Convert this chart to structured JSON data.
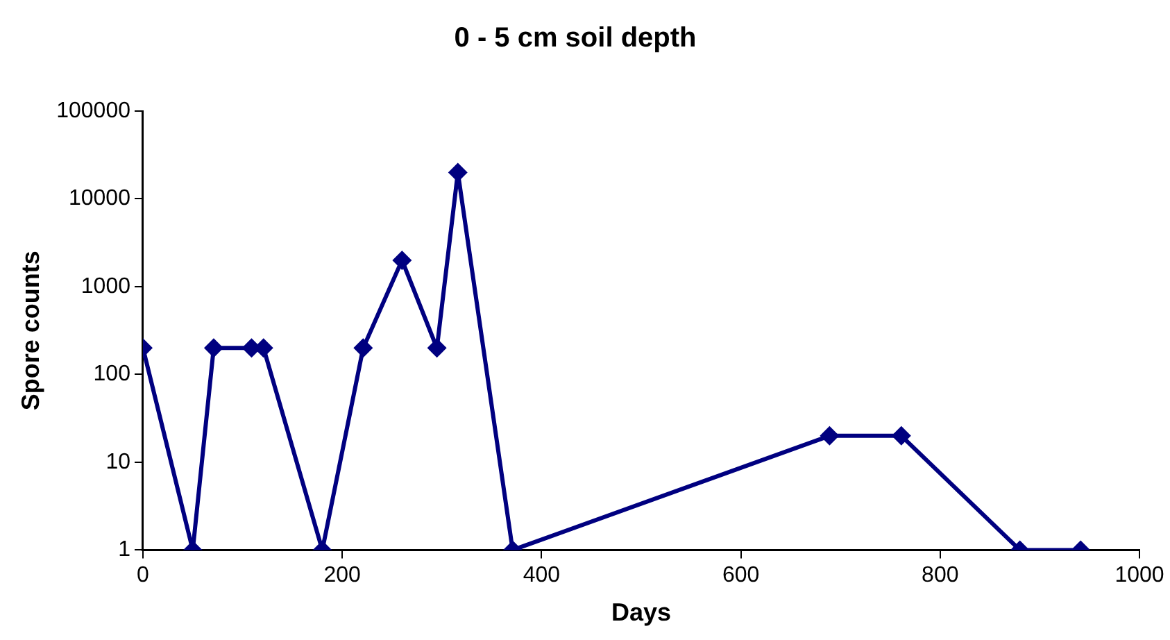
{
  "chart_data": {
    "type": "line",
    "title": "0 - 5 cm soil depth",
    "xlabel": "Days",
    "ylabel": "Spore counts",
    "x": [
      0,
      50,
      71,
      109,
      121,
      180,
      221,
      260,
      295,
      316,
      371,
      689,
      761,
      880,
      941
    ],
    "series": [
      {
        "color": "#000080",
        "values": [
          200,
          1,
          200,
          200,
          200,
          1,
          200,
          2000,
          200,
          20000,
          1,
          20,
          20,
          1,
          1
        ]
      }
    ],
    "xlim": [
      0,
      1000
    ],
    "xticks": [
      0,
      200,
      400,
      600,
      800,
      1000
    ],
    "ylim": [
      1,
      100000
    ],
    "yticks": [
      1,
      10,
      100,
      1000,
      10000,
      100000
    ],
    "log": "y",
    "grid": false,
    "legend": false,
    "marker": "diamond",
    "line_style": "solid"
  }
}
